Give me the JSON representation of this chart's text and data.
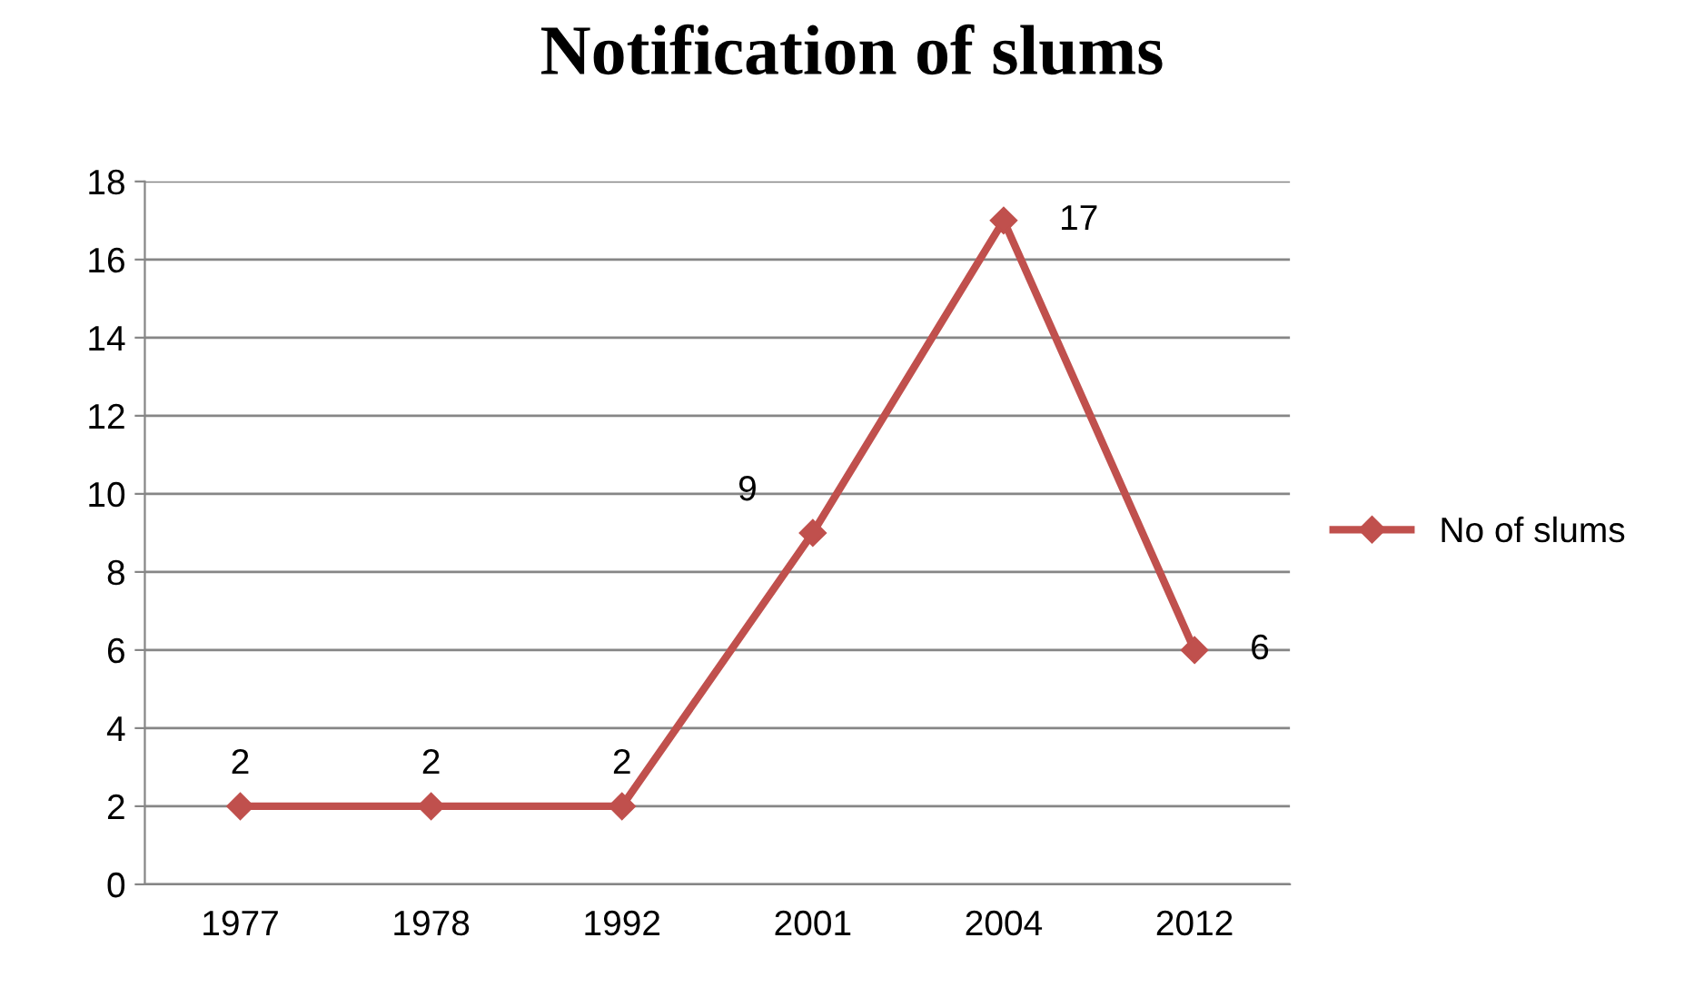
{
  "chart_data": {
    "type": "line",
    "title": "Notification of slums",
    "categories": [
      "1977",
      "1978",
      "1992",
      "2001",
      "2004",
      "2012"
    ],
    "series": [
      {
        "name": "No of slums",
        "color": "#c0504d",
        "values": [
          2,
          2,
          2,
          9,
          17,
          6
        ]
      }
    ],
    "ylim": [
      0,
      18
    ],
    "yticks": [
      0,
      2,
      4,
      6,
      8,
      10,
      12,
      14,
      16,
      18
    ],
    "grid": "y",
    "legend": "right",
    "marker": "diamond",
    "line_style": "solid",
    "data_labels": true
  }
}
